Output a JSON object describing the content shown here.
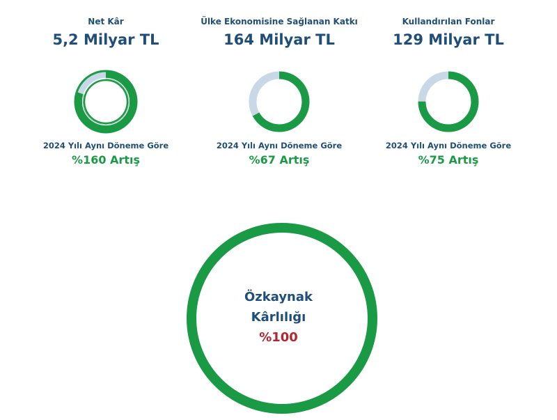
{
  "colors": {
    "green": "#1b9a45",
    "track": "#c9d8e6",
    "navy": "#1f4e79",
    "red": "#b3262e"
  },
  "chart_data": [
    {
      "type": "pie",
      "title": "Net Kâr",
      "value_text": "5,2 Milyar TL",
      "caption": "2024 Yılı Aynı Döneme Göre",
      "change_text": "%160 Artış",
      "fill_fraction": 0.8,
      "double_ring": true
    },
    {
      "type": "pie",
      "title": "Ülke Ekonomisine Sağlanan Katkı",
      "value_text": "164 Milyar TL",
      "caption": "2024 Yılı Aynı Döneme Göre",
      "change_text": "%67 Artış",
      "fill_fraction": 0.67,
      "double_ring": false
    },
    {
      "type": "pie",
      "title": "Kullandırılan Fonlar",
      "value_text": "129 Milyar TL",
      "caption": "2024 Yılı Aynı Döneme Göre",
      "change_text": "%75 Artış",
      "fill_fraction": 0.75,
      "double_ring": false
    },
    {
      "type": "pie",
      "title_line1": "Özkaynak",
      "title_line2": "Kârlılığı",
      "value_text": "%100",
      "fill_fraction": 1.0
    }
  ]
}
